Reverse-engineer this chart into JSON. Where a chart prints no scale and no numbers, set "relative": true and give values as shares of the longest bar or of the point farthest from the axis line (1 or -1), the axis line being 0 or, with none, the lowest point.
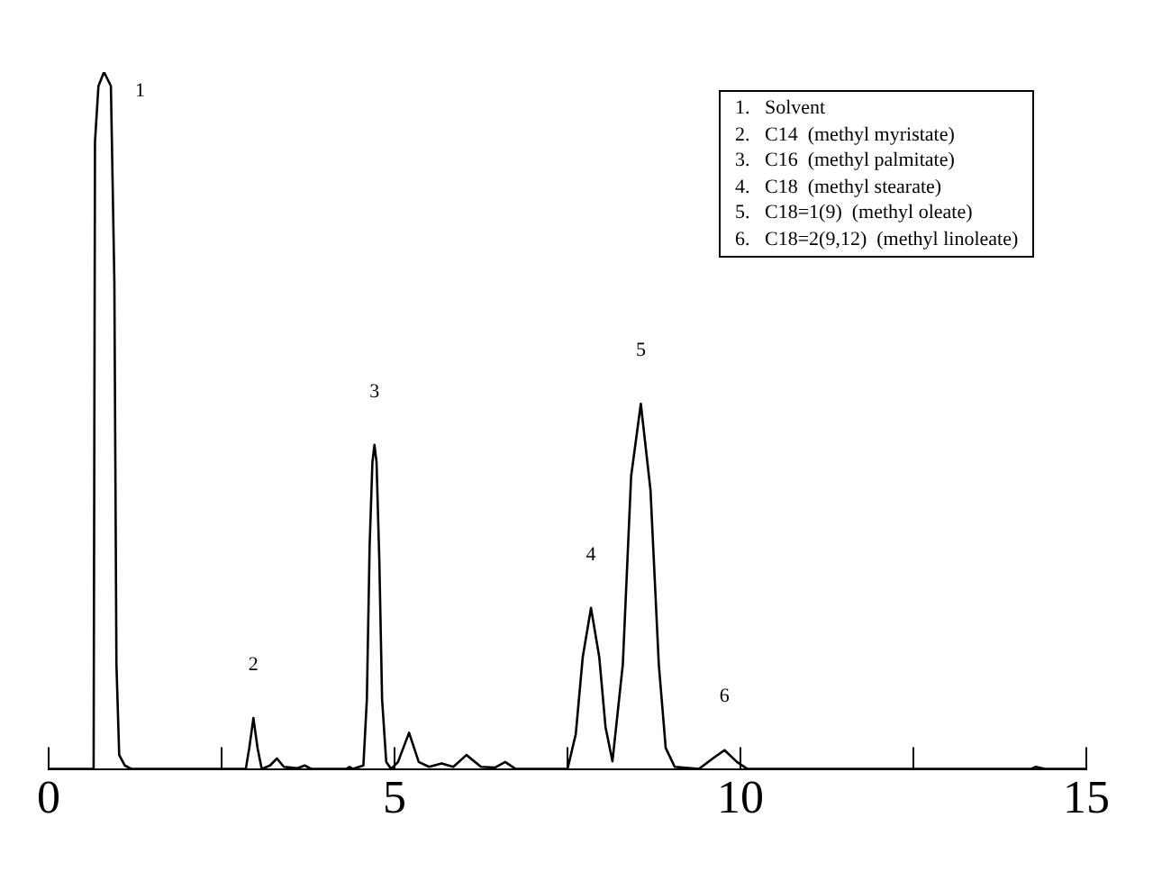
{
  "chart_data": {
    "type": "line",
    "relative": true,
    "grid": false,
    "legend": false,
    "marker": "none",
    "line_style": "solid",
    "tick_labels": "x",
    "xlim": [
      0,
      15
    ],
    "xticks": [
      0,
      {
        "value": 2.5,
        "label": null
      },
      5,
      {
        "value": 7.5,
        "label": null
      },
      10,
      {
        "value": 12.5,
        "label": null
      },
      15
    ],
    "series": [
      {
        "color": "#000000",
        "x": [
          0,
          0.6,
          0.65,
          0.67,
          0.72,
          0.8,
          0.9,
          0.95,
          0.98,
          1.02,
          1.1,
          1.2,
          2.85,
          2.9,
          2.96,
          3.02,
          3.08,
          3.2,
          3.3,
          3.4,
          3.6,
          3.7,
          3.8,
          4.3,
          4.35,
          4.4,
          4.55,
          4.6,
          4.64,
          4.68,
          4.71,
          4.74,
          4.78,
          4.82,
          4.88,
          4.95,
          5.05,
          5.21,
          5.35,
          5.5,
          5.68,
          5.85,
          6.04,
          6.25,
          6.45,
          6.6,
          6.75,
          7.5,
          7.62,
          7.72,
          7.84,
          7.96,
          8.05,
          8.15,
          8.3,
          8.42,
          8.56,
          8.7,
          8.82,
          8.92,
          9.05,
          9.4,
          9.6,
          9.77,
          9.95,
          10.1,
          14.2,
          14.27,
          14.4,
          15
        ],
        "values": [
          0,
          0,
          0,
          0.9,
          0.98,
          1,
          0.98,
          0.7,
          0.15,
          0.02,
          0.005,
          0,
          0,
          0.03,
          0.073,
          0.03,
          0,
          0.005,
          0.015,
          0.003,
          0.001,
          0.005,
          0,
          0,
          0.003,
          0,
          0.005,
          0.1,
          0.32,
          0.44,
          0.465,
          0.44,
          0.3,
          0.1,
          0.01,
          0,
          0.01,
          0.052,
          0.01,
          0.003,
          0.008,
          0.003,
          0.02,
          0.003,
          0.002,
          0.01,
          0,
          0,
          0.05,
          0.16,
          0.231,
          0.16,
          0.06,
          0.011,
          0.15,
          0.42,
          0.524,
          0.4,
          0.15,
          0.03,
          0.003,
          0,
          0.015,
          0.027,
          0.01,
          0,
          0,
          0.003,
          0,
          0
        ]
      }
    ],
    "annotations": [
      {
        "text": "1",
        "x": 0.8,
        "y": 1
      },
      {
        "text": "2",
        "x": 2.96,
        "y": 0.073
      },
      {
        "text": "3",
        "x": 4.71,
        "y": 0.465
      },
      {
        "text": "4",
        "x": 7.84,
        "y": 0.231
      },
      {
        "text": "5",
        "x": 8.56,
        "y": 0.524
      },
      {
        "text": "6",
        "x": 9.77,
        "y": 0.027
      },
      "1.   Solvent",
      "2.   C14  (methyl myristate)",
      "3.   C16  (methyl palmitate)",
      "4.   C18  (methyl stearate)",
      "5.   C18=1(9)  (methyl oleate)",
      "6.   C18=2(9,12)  (methyl linoleate)"
    ]
  }
}
